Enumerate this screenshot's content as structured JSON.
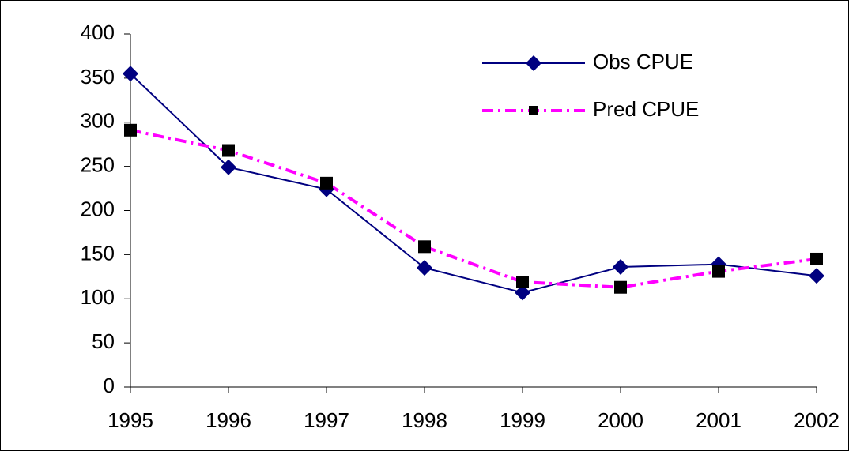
{
  "chart_data": {
    "type": "line",
    "categories": [
      "1995",
      "1996",
      "1997",
      "1998",
      "1999",
      "2000",
      "2001",
      "2002"
    ],
    "series": [
      {
        "name": "Obs CPUE",
        "color": "#000080",
        "marker": "diamond",
        "values": [
          355,
          249,
          224,
          135,
          107,
          136,
          139,
          126
        ]
      },
      {
        "name": "Pred CPUE",
        "color": "#ff00ff",
        "marker": "square",
        "marker_color": "#000000",
        "dash": "dash-dot",
        "values": [
          291,
          268,
          231,
          159,
          119,
          113,
          131,
          145
        ]
      }
    ],
    "ylim": [
      0,
      400
    ],
    "yticks": [
      0,
      50,
      100,
      150,
      200,
      250,
      300,
      350,
      400
    ],
    "grid": false,
    "legend": "top-right"
  }
}
